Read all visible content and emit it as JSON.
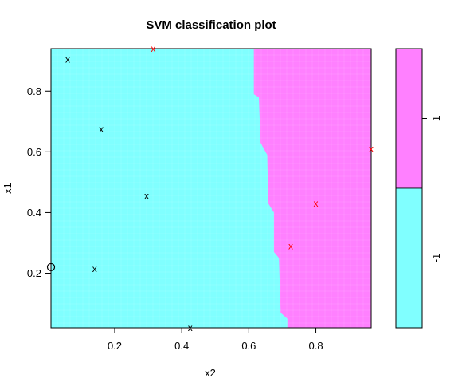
{
  "chart_data": {
    "type": "scatter",
    "title": "SVM classification plot",
    "xlabel": "x2",
    "ylabel": "x1",
    "xlim": [
      0.01,
      0.965
    ],
    "ylim": [
      0.02,
      0.94
    ],
    "x_ticks": [
      0.2,
      0.4,
      0.6,
      0.8
    ],
    "y_ticks": [
      0.2,
      0.4,
      0.6,
      0.8
    ],
    "grid": false,
    "region_colors": {
      "-1": "#80ffff",
      "1": "#ff80ff"
    },
    "decision_boundary": [
      {
        "x1": 0.94,
        "x2": 0.615
      },
      {
        "x1": 0.79,
        "x2": 0.615
      },
      {
        "x1": 0.78,
        "x2": 0.63
      },
      {
        "x1": 0.63,
        "x2": 0.635
      },
      {
        "x1": 0.59,
        "x2": 0.655
      },
      {
        "x1": 0.43,
        "x2": 0.658
      },
      {
        "x1": 0.4,
        "x2": 0.675
      },
      {
        "x1": 0.27,
        "x2": 0.675
      },
      {
        "x1": 0.25,
        "x2": 0.69
      },
      {
        "x1": 0.07,
        "x2": 0.695
      },
      {
        "x1": 0.05,
        "x2": 0.715
      },
      {
        "x1": 0.02,
        "x2": 0.715
      }
    ],
    "points": [
      {
        "x": 0.06,
        "y": 0.905,
        "class": "-1",
        "marker": "x"
      },
      {
        "x": 0.16,
        "y": 0.675,
        "class": "-1",
        "marker": "x"
      },
      {
        "x": 0.295,
        "y": 0.455,
        "class": "-1",
        "marker": "x"
      },
      {
        "x": 0.14,
        "y": 0.215,
        "class": "-1",
        "marker": "x"
      },
      {
        "x": 0.425,
        "y": 0.02,
        "class": "-1",
        "marker": "x"
      },
      {
        "x": 0.01,
        "y": 0.22,
        "class": "-1",
        "marker": "o"
      },
      {
        "x": 0.315,
        "y": 0.94,
        "class": "1",
        "marker": "x"
      },
      {
        "x": 0.965,
        "y": 0.61,
        "class": "1",
        "marker": "x"
      },
      {
        "x": 0.8,
        "y": 0.43,
        "class": "1",
        "marker": "x"
      },
      {
        "x": 0.725,
        "y": 0.29,
        "class": "1",
        "marker": "x"
      }
    ],
    "point_colors": {
      "-1": "#000000",
      "1": "#ff0000"
    },
    "legend": {
      "placement": "right",
      "entries": [
        {
          "label": "1",
          "color": "#ff80ff",
          "fraction": 0.5
        },
        {
          "label": "-1",
          "color": "#80ffff",
          "fraction": 0.5
        }
      ]
    }
  }
}
